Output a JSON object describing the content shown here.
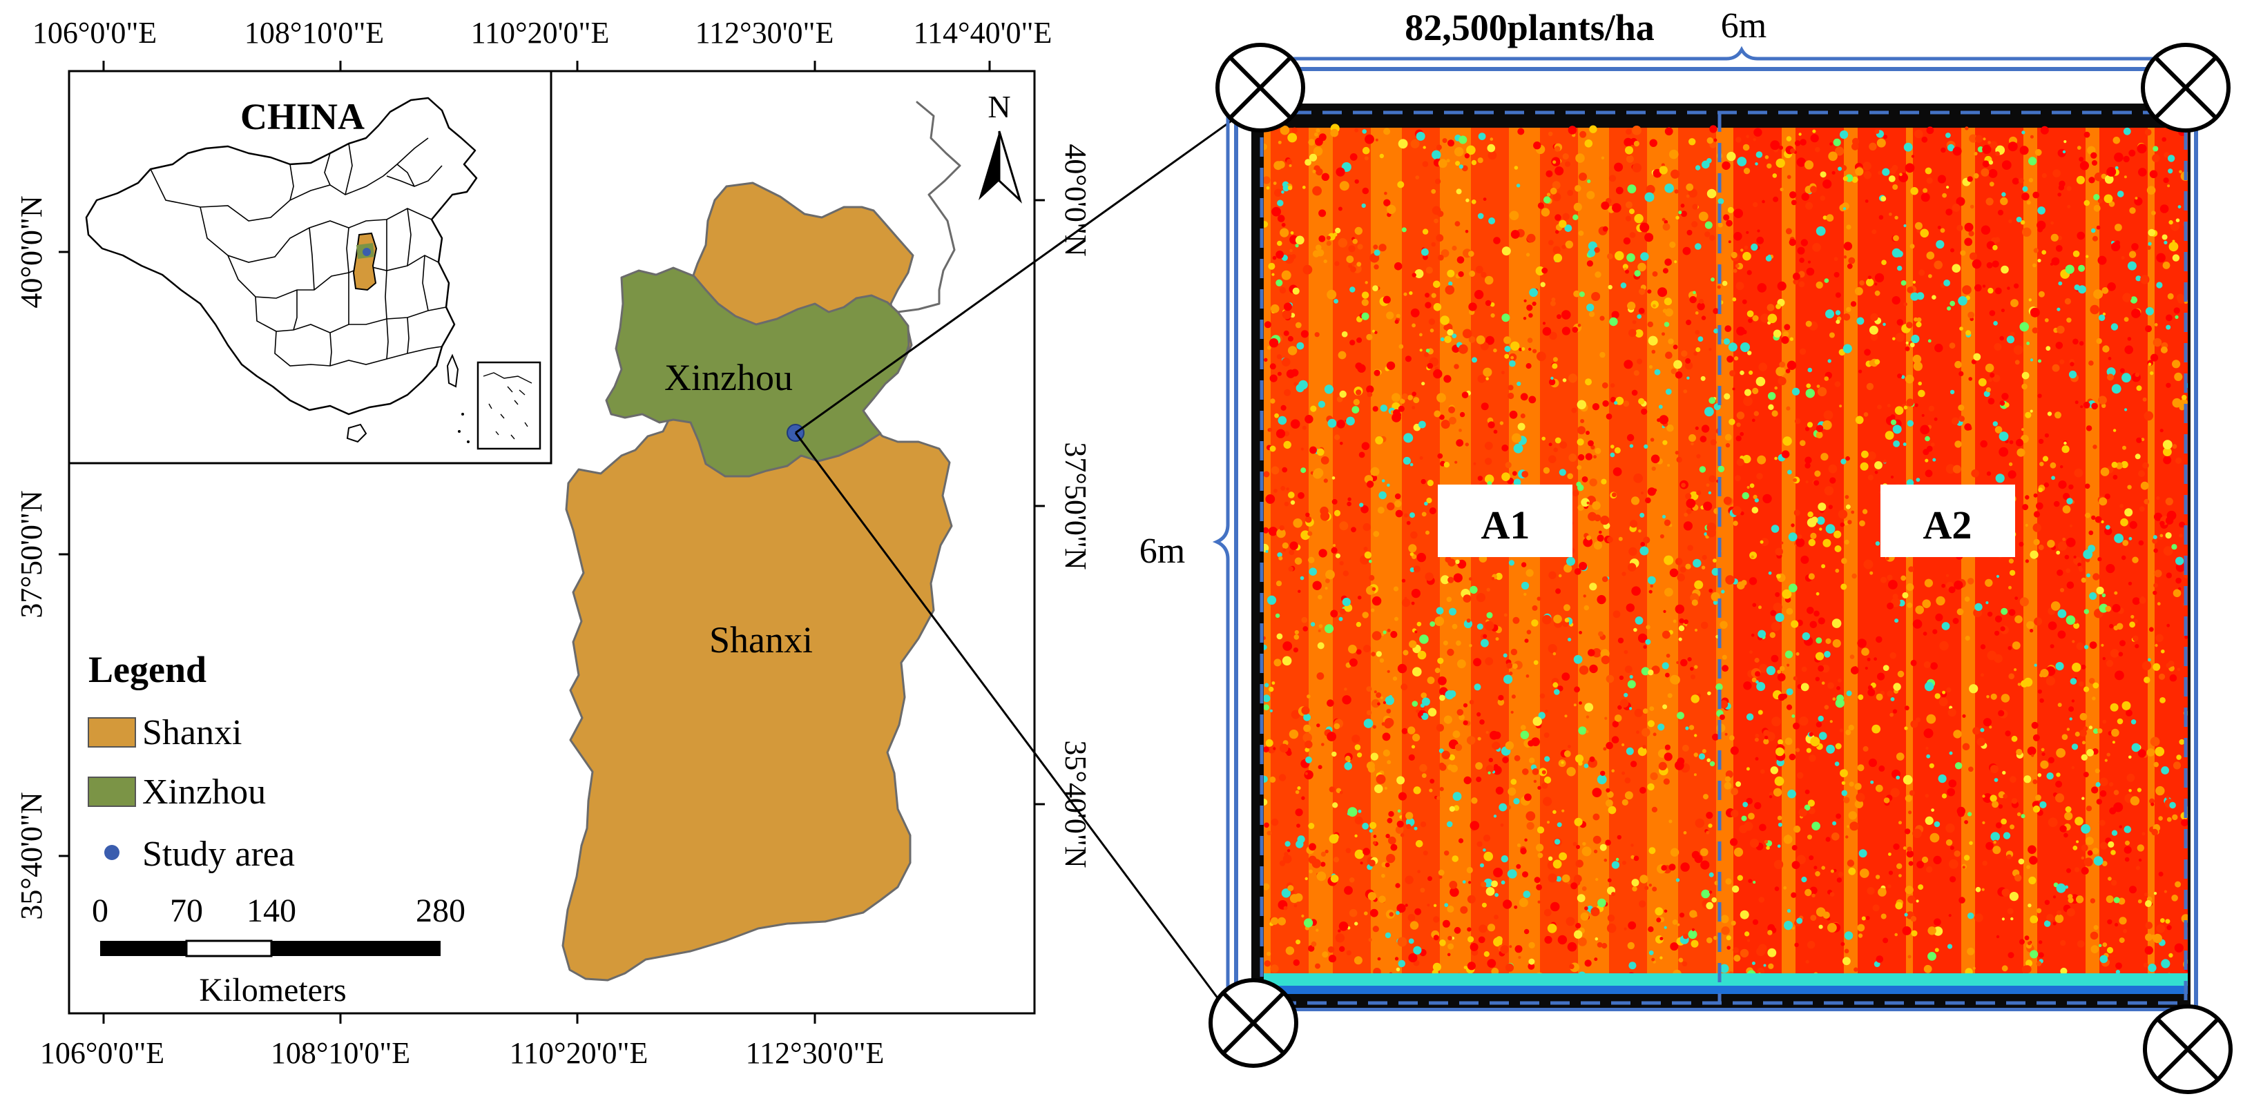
{
  "map": {
    "graticule": {
      "top_lon": [
        "106°0'0\"E",
        "108°10'0\"E",
        "110°20'0\"E",
        "112°30'0\"E",
        "114°40'0\"E"
      ],
      "bottom_lon": [
        "106°0'0\"E",
        "108°10'0\"E",
        "110°20'0\"E",
        "112°30'0\"E"
      ],
      "left_lat": [
        "40°0'0\"N",
        "37°50'0\"N",
        "35°40'0\"N"
      ],
      "right_lat": [
        "40°0'0\"N",
        "37°50'0\"N",
        "35°40'0\"N"
      ]
    },
    "inset": {
      "title": "CHINA"
    },
    "north_arrow": {
      "label": "N"
    },
    "regions": {
      "shanxi": {
        "label": "Shanxi",
        "color": "#D4993A"
      },
      "xinzhou": {
        "label": "Xinzhou",
        "color": "#7B9446"
      }
    },
    "study_area": {
      "color": "#3A5DAE"
    },
    "legend": {
      "title": "Legend",
      "items": [
        {
          "label": "Shanxi",
          "kind": "swatch",
          "color": "#D4993A"
        },
        {
          "label": "Xinzhou",
          "kind": "swatch",
          "color": "#7B9446"
        },
        {
          "label": "Study area",
          "kind": "dot",
          "color": "#3A5DAE"
        }
      ]
    },
    "scale_bar": {
      "ticks": [
        "0",
        "70",
        "140",
        "280"
      ],
      "unit": "Kilometers"
    }
  },
  "plot": {
    "density_label": "82,500plants/ha",
    "width_label": "6m",
    "height_label": "6m",
    "subplots": [
      "A1",
      "A2"
    ],
    "frame_color": "#4472C4"
  }
}
